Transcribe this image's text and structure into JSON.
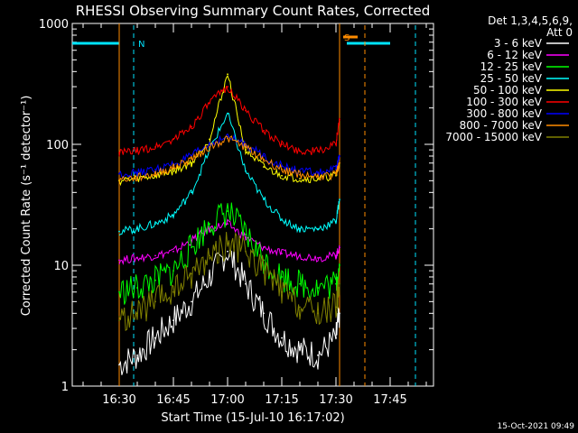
{
  "chart_data": {
    "type": "line",
    "title": "RHESSI Observing Summary Count Rates, Corrected",
    "xlabel": "Start Time (15-Jul-10 16:17:02)",
    "ylabel": "Corrected Count Rate (s⁻¹ detector⁻¹)",
    "yscale": "log",
    "ylim": [
      1,
      1000
    ],
    "y_ticks": [
      "1",
      "10",
      "100",
      "1000"
    ],
    "xlim": [
      "16:17",
      "17:57"
    ],
    "x_ticks": [
      "16:30",
      "16:45",
      "17:00",
      "17:15",
      "17:30",
      "17:45"
    ],
    "legend_header": [
      "Det 1,3,4,5,6,9,",
      "Att 0"
    ],
    "legend_position": "right",
    "timestamp": "15-Oct-2021 09:49",
    "flags": [
      {
        "label": "N",
        "color": "#00e5ff",
        "segments": [
          [
            "16:17",
            "16:30"
          ],
          [
            "17:33",
            "17:45"
          ]
        ],
        "start": "16:34",
        "end": "17:52"
      },
      {
        "label": "S",
        "color": "#ff8c00",
        "segments": [
          [
            "17:32",
            "17:36"
          ]
        ],
        "start": "17:31",
        "end": "17:38"
      }
    ],
    "series": [
      {
        "name": "3 - 6 keV",
        "color": "#ffffff",
        "x": [
          "16:30",
          "16:35",
          "16:40",
          "16:45",
          "16:50",
          "16:55",
          "17:00",
          "17:05",
          "17:10",
          "17:15",
          "17:20",
          "17:25",
          "17:30",
          "17:31"
        ],
        "values": [
          1.5,
          1.8,
          2.5,
          3.5,
          5,
          8,
          13,
          7,
          4,
          2.5,
          2,
          1.8,
          2.5,
          4
        ]
      },
      {
        "name": "6 - 12 keV",
        "color": "#ff00ff",
        "x": [
          "16:30",
          "16:35",
          "16:40",
          "16:45",
          "16:50",
          "16:55",
          "17:00",
          "17:05",
          "17:10",
          "17:15",
          "17:20",
          "17:25",
          "17:30",
          "17:31"
        ],
        "values": [
          11,
          11.5,
          12,
          13,
          16,
          20,
          22,
          17,
          14,
          12.5,
          12,
          11.5,
          12,
          14
        ]
      },
      {
        "name": "12 - 25 keV",
        "color": "#00ff00",
        "x": [
          "16:30",
          "16:35",
          "16:40",
          "16:45",
          "16:50",
          "16:55",
          "17:00",
          "17:05",
          "17:10",
          "17:15",
          "17:20",
          "17:25",
          "17:30",
          "17:31"
        ],
        "values": [
          6,
          6.5,
          7.5,
          9,
          14,
          22,
          28,
          18,
          11,
          8,
          7,
          6.5,
          7,
          10
        ]
      },
      {
        "name": "25 - 50 keV",
        "color": "#00ffff",
        "x": [
          "16:30",
          "16:35",
          "16:40",
          "16:45",
          "16:50",
          "16:55",
          "17:00",
          "17:05",
          "17:10",
          "17:15",
          "17:20",
          "17:25",
          "17:30",
          "17:31"
        ],
        "values": [
          19,
          20,
          22,
          26,
          40,
          90,
          180,
          60,
          35,
          24,
          20,
          20,
          23,
          35
        ]
      },
      {
        "name": "50 - 100 keV",
        "color": "#ffff00",
        "x": [
          "16:30",
          "16:35",
          "16:40",
          "16:45",
          "16:50",
          "16:55",
          "17:00",
          "17:05",
          "17:10",
          "17:15",
          "17:20",
          "17:25",
          "17:30",
          "17:31"
        ],
        "values": [
          50,
          52,
          55,
          60,
          70,
          110,
          380,
          90,
          65,
          55,
          52,
          52,
          55,
          70
        ]
      },
      {
        "name": "100 - 300 keV",
        "color": "#ff0000",
        "x": [
          "16:30",
          "16:35",
          "16:40",
          "16:45",
          "16:50",
          "16:55",
          "17:00",
          "17:05",
          "17:10",
          "17:15",
          "17:20",
          "17:25",
          "17:30",
          "17:31"
        ],
        "values": [
          85,
          88,
          95,
          110,
          140,
          220,
          300,
          190,
          130,
          100,
          88,
          88,
          100,
          160
        ]
      },
      {
        "name": "300 - 800 keV",
        "color": "#0000ff",
        "x": [
          "16:30",
          "16:35",
          "16:40",
          "16:45",
          "16:50",
          "16:55",
          "17:00",
          "17:05",
          "17:10",
          "17:15",
          "17:20",
          "17:25",
          "17:30",
          "17:31"
        ],
        "values": [
          57,
          58,
          62,
          68,
          80,
          100,
          115,
          100,
          80,
          66,
          60,
          58,
          62,
          80
        ]
      },
      {
        "name": "800 - 7000 keV",
        "color": "#ff8c00",
        "x": [
          "16:30",
          "16:35",
          "16:40",
          "16:45",
          "16:50",
          "16:55",
          "17:00",
          "17:05",
          "17:10",
          "17:15",
          "17:20",
          "17:25",
          "17:30",
          "17:31"
        ],
        "values": [
          51,
          53,
          57,
          64,
          76,
          95,
          112,
          95,
          75,
          62,
          56,
          54,
          56,
          70
        ]
      },
      {
        "name": "7000 - 15000 keV",
        "color": "#808000",
        "x": [
          "16:30",
          "16:35",
          "16:40",
          "16:45",
          "16:50",
          "16:55",
          "17:00",
          "17:05",
          "17:10",
          "17:15",
          "17:20",
          "17:25",
          "17:30",
          "17:31"
        ],
        "values": [
          3.5,
          4,
          5,
          6,
          8.5,
          12,
          15,
          13,
          9,
          6,
          4.5,
          4,
          4.5,
          7
        ]
      }
    ]
  }
}
